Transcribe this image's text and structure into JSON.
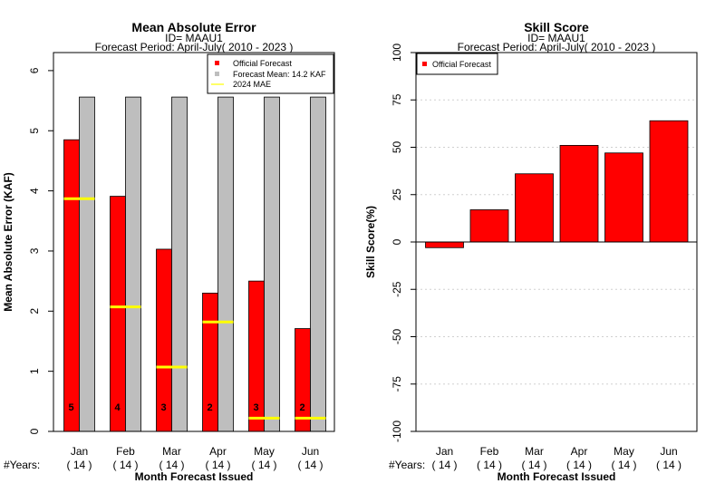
{
  "chart_data": [
    {
      "type": "bar",
      "title": "Mean Absolute Error",
      "subtitle_id": "ID= MAAU1",
      "subtitle_period": "Forecast Period: April-July( 2010 - 2023 )",
      "xlabel": "Month Forecast Issued",
      "ylabel": "Mean Absolute Error (KAF)",
      "ylim": [
        0,
        6.3
      ],
      "yticks": [
        "0",
        "1",
        "2",
        "3",
        "4",
        "5",
        "6"
      ],
      "categories": [
        "Jan",
        "Feb",
        "Mar",
        "Apr",
        "May",
        "Jun"
      ],
      "years_label": "#Years:",
      "years": [
        "( 14 )",
        "( 14 )",
        "( 14 )",
        "( 14 )",
        "( 14 )",
        "( 14 )"
      ],
      "series": [
        {
          "name": "Official Forecast",
          "color": "#ff0000",
          "values": [
            4.85,
            3.91,
            3.03,
            2.3,
            2.5,
            1.71
          ]
        },
        {
          "name": "Forecast Mean: 14.2 KAF",
          "color": "#bebebe",
          "values": [
            5.56,
            5.56,
            5.56,
            5.56,
            5.56,
            5.56
          ]
        },
        {
          "name": " 2024  MAE",
          "color": "#ffff00",
          "values": [
            3.87,
            2.07,
            1.07,
            1.82,
            0.22,
            0.22
          ]
        }
      ],
      "bar_counts": [
        "5",
        "4",
        "3",
        "2",
        "3",
        "2"
      ],
      "legend_position": "top-right",
      "grid": false
    },
    {
      "type": "bar",
      "title": "Skill Score",
      "subtitle_id": "ID= MAAU1",
      "subtitle_period": "Forecast Period: April-July( 2010 - 2023 )",
      "xlabel": "Month Forecast Issued",
      "ylabel": "Skill Score(%)",
      "ylim": [
        -100,
        100
      ],
      "yticks": [
        "-100",
        "-75",
        "-50",
        "-25",
        "0",
        "25",
        "50",
        "75",
        "100"
      ],
      "categories": [
        "Jan",
        "Feb",
        "Mar",
        "Apr",
        "May",
        "Jun"
      ],
      "years_label": "#Years:",
      "years": [
        "( 14 )",
        "( 14 )",
        "( 14 )",
        "( 14 )",
        "( 14 )",
        "( 14 )"
      ],
      "series": [
        {
          "name": "Official Forecast",
          "color": "#ff0000",
          "values": [
            -3,
            17,
            36,
            51,
            47,
            64
          ]
        }
      ],
      "legend_position": "top-left",
      "grid": true
    }
  ]
}
